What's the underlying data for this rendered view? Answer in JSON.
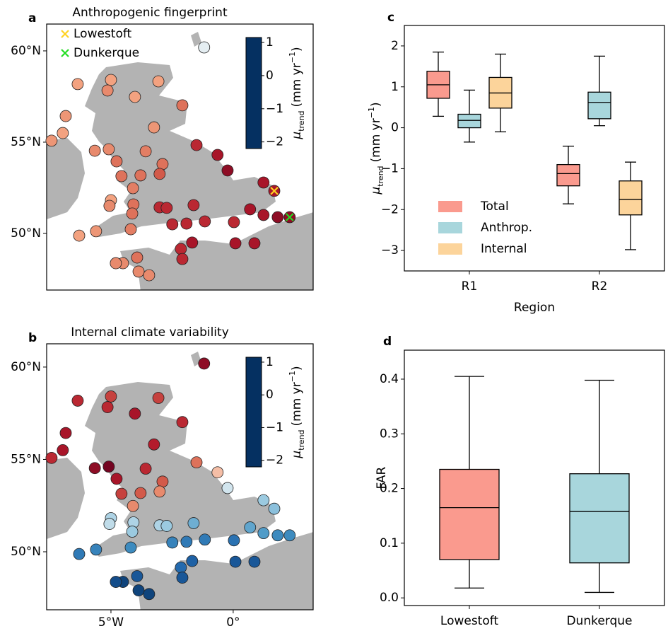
{
  "chart_data": [
    {
      "type": "map",
      "panel": "a",
      "title": "Anthropogenic fingerprint",
      "xlim": [
        -7.63,
        3.27
      ],
      "ylim": [
        46.9,
        61.47
      ],
      "yticks": [
        {
          "value": 50,
          "label": "50°N"
        },
        {
          "value": 55,
          "label": "55°N"
        },
        {
          "value": 60,
          "label": "60°N"
        }
      ],
      "x": [
        -1.19,
        -6.36,
        -5.0,
        -5.14,
        -4.02,
        -3.06,
        -2.08,
        -6.85,
        -6.97,
        -7.43,
        -3.24,
        -5.66,
        -5.09,
        -3.58,
        -1.5,
        -0.64,
        -0.23,
        -4.77,
        -2.89,
        -4.57,
        -3.79,
        -3.01,
        -4.1,
        1.24,
        1.68,
        -5.0,
        -5.06,
        -4.08,
        -4.13,
        -3.01,
        -2.72,
        -1.62,
        0.69,
        1.24,
        1.82,
        2.31,
        -6.3,
        -5.61,
        -4.19,
        -2.49,
        -1.91,
        -1.16,
        0.03,
        0.87,
        -1.68,
        -2.14,
        -2.08,
        0.09,
        -3.93,
        -4.51,
        -4.8,
        -3.87,
        -3.44
      ],
      "y": [
        60.19,
        58.18,
        58.41,
        57.83,
        57.48,
        58.33,
        57.02,
        56.43,
        55.5,
        55.08,
        55.81,
        54.53,
        54.61,
        54.5,
        54.84,
        54.3,
        53.45,
        53.95,
        53.8,
        53.14,
        53.18,
        53.26,
        52.48,
        52.79,
        52.33,
        51.82,
        51.51,
        51.59,
        51.09,
        51.43,
        51.4,
        51.55,
        51.32,
        51.01,
        50.89,
        50.89,
        49.88,
        50.12,
        50.23,
        50.5,
        50.54,
        50.66,
        50.62,
        49.46,
        49.5,
        49.15,
        48.6,
        49.46,
        48.68,
        48.37,
        48.37,
        47.91,
        47.71
      ],
      "values": [
        -0.1,
        0.3,
        0.3,
        0.4,
        0.3,
        0.3,
        0.5,
        0.35,
        0.3,
        0.35,
        0.35,
        0.4,
        0.4,
        0.45,
        0.8,
        0.9,
        1.0,
        0.5,
        0.5,
        0.5,
        0.5,
        0.6,
        0.45,
        0.9,
        0.9,
        0.3,
        0.4,
        0.5,
        0.5,
        0.8,
        0.8,
        0.8,
        0.9,
        0.9,
        1.0,
        1.0,
        0.3,
        0.35,
        0.45,
        0.8,
        0.8,
        0.8,
        0.8,
        0.9,
        0.9,
        0.8,
        0.8,
        0.9,
        0.5,
        0.4,
        0.4,
        0.4,
        0.4
      ],
      "highlights": [
        {
          "name": "Lowestoft",
          "color": "#ffd21f",
          "x": 1.68,
          "y": 52.33
        },
        {
          "name": "Dunkerque",
          "color": "#22dd22",
          "x": 2.31,
          "y": 50.89
        }
      ],
      "colormap": "RdBu_r",
      "colormap_colors": [
        "#053061",
        "#2166ac",
        "#4393c3",
        "#92c5de",
        "#f7f7f7",
        "#f4a582",
        "#d6604d",
        "#b2182b",
        "#67001f"
      ],
      "clim": [
        -2.2,
        1.15
      ],
      "colorbar_ticks": [
        1,
        0,
        {
          "value": -1,
          "label": "−1"
        },
        {
          "value": -2,
          "label": "−2"
        }
      ],
      "colorbar_label": {
        "symbol": "μ",
        "subscript": "trend",
        "unit": "(mm yr",
        "superscript": "−1",
        "suffix": ")"
      }
    },
    {
      "type": "map",
      "panel": "b",
      "title": "Internal climate variability",
      "xlim": [
        -7.63,
        3.27
      ],
      "ylim": [
        46.86,
        61.26
      ],
      "xticks": [
        {
          "value": -5,
          "label": "5°W"
        },
        {
          "value": 0,
          "label": "0°"
        }
      ],
      "yticks": [
        {
          "value": 50,
          "label": "50°N"
        },
        {
          "value": 55,
          "label": "55°N"
        },
        {
          "value": 60,
          "label": "60°N"
        }
      ],
      "x": [
        -1.19,
        -6.36,
        -5.0,
        -5.14,
        -4.02,
        -3.06,
        -2.08,
        -6.85,
        -6.97,
        -7.43,
        -3.24,
        -5.66,
        -5.09,
        -3.58,
        -1.5,
        -0.64,
        -0.23,
        -4.77,
        -2.89,
        -4.57,
        -3.79,
        -3.01,
        -4.1,
        1.24,
        1.68,
        -5.0,
        -5.06,
        -4.08,
        -4.13,
        -3.01,
        -2.72,
        -1.62,
        0.69,
        1.24,
        1.82,
        2.31,
        -6.3,
        -5.61,
        -4.19,
        -2.49,
        -1.91,
        -1.16,
        0.03,
        0.87,
        -1.68,
        -2.14,
        -2.08,
        0.09,
        -3.93,
        -4.51,
        -4.8,
        -3.87,
        -3.44
      ],
      "y": [
        60.19,
        58.18,
        58.41,
        57.83,
        57.48,
        58.33,
        57.02,
        56.43,
        55.5,
        55.08,
        55.81,
        54.53,
        54.61,
        54.5,
        54.84,
        54.3,
        53.45,
        53.95,
        53.8,
        53.14,
        53.18,
        53.26,
        52.48,
        52.79,
        52.33,
        51.82,
        51.51,
        51.59,
        51.09,
        51.43,
        51.4,
        51.55,
        51.32,
        51.01,
        50.89,
        50.89,
        49.88,
        50.12,
        50.23,
        50.5,
        50.54,
        50.66,
        50.62,
        49.46,
        49.5,
        49.15,
        48.6,
        49.46,
        48.68,
        48.37,
        48.37,
        47.91,
        47.71
      ],
      "values": [
        1.0,
        0.8,
        0.7,
        0.8,
        0.9,
        0.7,
        0.8,
        0.9,
        0.9,
        0.8,
        0.85,
        1.0,
        1.1,
        0.8,
        0.5,
        0.2,
        -0.2,
        0.9,
        0.6,
        0.7,
        0.6,
        0.4,
        0.4,
        -0.5,
        -0.6,
        -0.4,
        -0.3,
        -0.4,
        -0.5,
        -0.4,
        -0.5,
        -0.8,
        -0.9,
        -1.0,
        -1.2,
        -1.2,
        -1.4,
        -1.3,
        -1.2,
        -1.3,
        -1.4,
        -1.4,
        -1.5,
        -1.8,
        -1.7,
        -1.6,
        -1.8,
        -1.8,
        -1.8,
        -2.0,
        -1.9,
        -2.0,
        -2.0
      ],
      "colormap": "RdBu_r",
      "colormap_colors": [
        "#053061",
        "#2166ac",
        "#4393c3",
        "#92c5de",
        "#f7f7f7",
        "#f4a582",
        "#d6604d",
        "#b2182b",
        "#67001f"
      ],
      "clim": [
        -2.2,
        1.15
      ],
      "colorbar_ticks": [
        1,
        0,
        {
          "value": -1,
          "label": "−1"
        },
        {
          "value": -2,
          "label": "−2"
        }
      ],
      "colorbar_label": {
        "symbol": "μ",
        "subscript": "trend",
        "unit": "(mm yr",
        "superscript": "−1",
        "suffix": ")"
      }
    },
    {
      "type": "box",
      "panel": "c",
      "categories": [
        "R1",
        "R2"
      ],
      "xlabel": "Region",
      "ylabel": {
        "symbol": "μ",
        "subscript": "trend",
        "unit": "(mm yr",
        "superscript": "−1",
        "suffix": ")"
      },
      "ylim": [
        -3.5,
        2.5
      ],
      "yticks": [
        {
          "value": -3,
          "label": "−3"
        },
        {
          "value": -2,
          "label": "−2"
        },
        {
          "value": -1,
          "label": "−1"
        },
        0,
        1,
        2
      ],
      "series": [
        {
          "name": "Total",
          "color": "#fa9a8e",
          "whislo": [
            0.28,
            -1.86
          ],
          "q1": [
            0.72,
            -1.42
          ],
          "median": [
            1.05,
            -1.12
          ],
          "q3": [
            1.38,
            -0.9
          ],
          "whishi": [
            1.85,
            -0.45
          ]
        },
        {
          "name": "Anthrop.",
          "color": "#a8d6dc",
          "whislo": [
            -0.35,
            0.05
          ],
          "q1": [
            0.0,
            0.22
          ],
          "median": [
            0.18,
            0.62
          ],
          "q3": [
            0.33,
            0.87
          ],
          "whishi": [
            0.92,
            1.75
          ]
        },
        {
          "name": "Internal",
          "color": "#fcd49b",
          "whislo": [
            -0.1,
            -2.98
          ],
          "q1": [
            0.48,
            -2.13
          ],
          "median": [
            0.85,
            -1.75
          ],
          "q3": [
            1.23,
            -1.3
          ],
          "whishi": [
            1.8,
            -0.84
          ]
        }
      ]
    },
    {
      "type": "box",
      "panel": "d",
      "categories": [
        "Lowestoft",
        "Dunkerque"
      ],
      "ylabel": "FAR",
      "ylim": [
        -0.014,
        0.453
      ],
      "yticks": [
        {
          "value": 0,
          "label": "0.0"
        },
        0.1,
        0.2,
        0.3,
        0.4
      ],
      "series": [
        {
          "colors": [
            "#fa9a8e",
            "#a8d6dc"
          ],
          "whislo": [
            0.018,
            0.01
          ],
          "q1": [
            0.07,
            0.064
          ],
          "median": [
            0.165,
            0.158
          ],
          "q3": [
            0.235,
            0.227
          ],
          "whishi": [
            0.405,
            0.398
          ]
        }
      ]
    }
  ]
}
